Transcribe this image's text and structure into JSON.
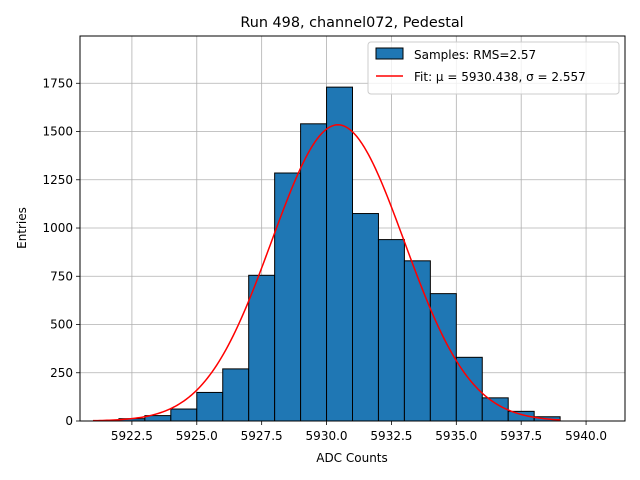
{
  "chart_data": {
    "type": "bar",
    "title": "Run 498, channel072, Pedestal",
    "xlabel": "ADC Counts",
    "ylabel": "Entries",
    "xlim": [
      5920.5,
      5941.5
    ],
    "ylim": [
      0,
      1995
    ],
    "grid": true,
    "legend_position": "top-right",
    "x_ticks": [
      5922.5,
      5925.0,
      5927.5,
      5930.0,
      5932.5,
      5935.0,
      5937.5,
      5940.0
    ],
    "x_tick_labels": [
      "5922.5",
      "5925.0",
      "5927.5",
      "5930.0",
      "5932.5",
      "5935.0",
      "5937.5",
      "5940.0"
    ],
    "y_ticks": [
      0,
      250,
      500,
      750,
      1000,
      1250,
      1500,
      1750
    ],
    "y_tick_labels": [
      "0",
      "250",
      "500",
      "750",
      "1000",
      "1250",
      "1500",
      "1750"
    ],
    "histogram": {
      "name": "Samples: RMS=2.57",
      "color": "#1f77b4",
      "edge_color": "#000000",
      "bins": [
        {
          "x0": 5922.0,
          "x1": 5923.0,
          "count": 12
        },
        {
          "x0": 5923.0,
          "x1": 5924.0,
          "count": 28
        },
        {
          "x0": 5924.0,
          "x1": 5925.0,
          "count": 62
        },
        {
          "x0": 5925.0,
          "x1": 5926.0,
          "count": 148
        },
        {
          "x0": 5926.0,
          "x1": 5927.0,
          "count": 270
        },
        {
          "x0": 5927.0,
          "x1": 5928.0,
          "count": 755
        },
        {
          "x0": 5928.0,
          "x1": 5929.0,
          "count": 1285
        },
        {
          "x0": 5929.0,
          "x1": 5930.0,
          "count": 1540
        },
        {
          "x0": 5930.0,
          "x1": 5931.0,
          "count": 1730
        },
        {
          "x0": 5931.0,
          "x1": 5932.0,
          "count": 1075
        },
        {
          "x0": 5932.0,
          "x1": 5933.0,
          "count": 940
        },
        {
          "x0": 5933.0,
          "x1": 5934.0,
          "count": 830
        },
        {
          "x0": 5934.0,
          "x1": 5935.0,
          "count": 660
        },
        {
          "x0": 5935.0,
          "x1": 5936.0,
          "count": 330
        },
        {
          "x0": 5936.0,
          "x1": 5937.0,
          "count": 120
        },
        {
          "x0": 5937.0,
          "x1": 5938.0,
          "count": 50
        },
        {
          "x0": 5938.0,
          "x1": 5939.0,
          "count": 22
        }
      ]
    },
    "fit": {
      "name": "Fit: μ = 5930.438, σ = 2.557",
      "color": "#ff0000",
      "mu": 5930.438,
      "sigma": 2.557,
      "amplitude": 1535,
      "x_range": [
        5921.0,
        5939.0
      ]
    }
  }
}
